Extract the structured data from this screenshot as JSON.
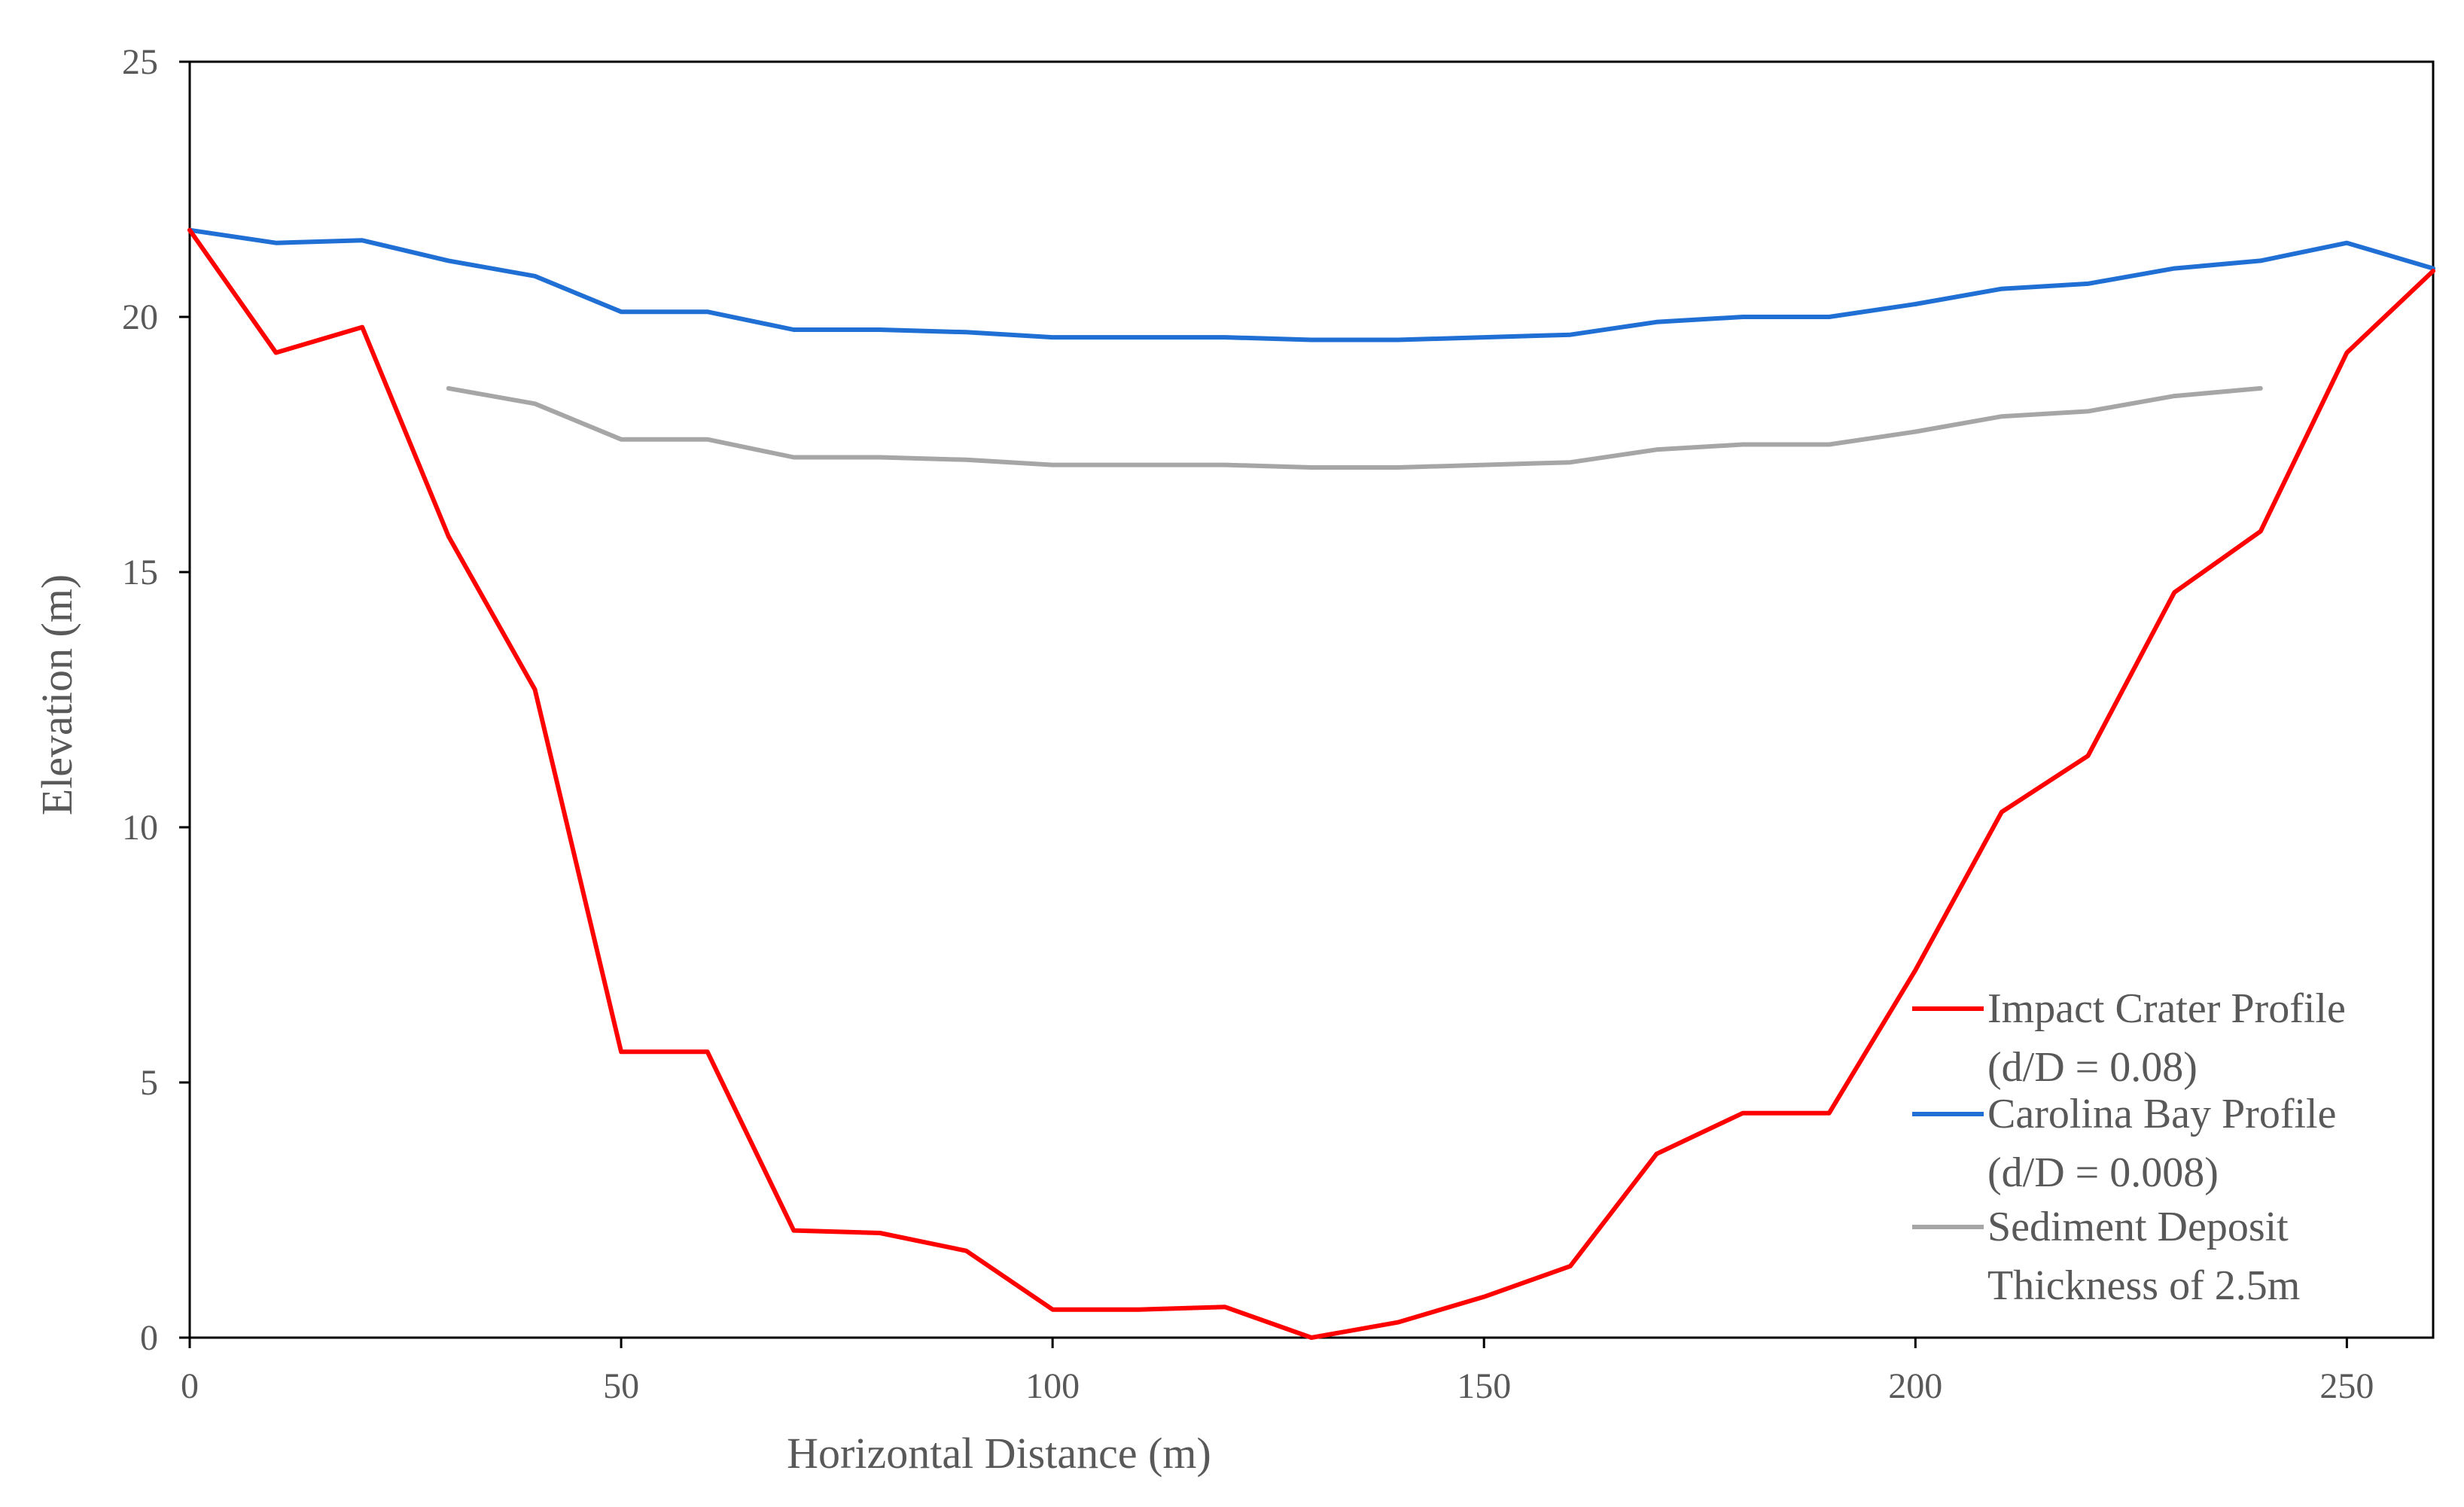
{
  "chart_data": {
    "type": "line",
    "title": "",
    "xlabel": "Horizontal Distance (m)",
    "ylabel": "Elevation (m)",
    "xlim": [
      0,
      260
    ],
    "ylim": [
      0,
      25
    ],
    "xticks": [
      0,
      50,
      100,
      150,
      200,
      250
    ],
    "yticks": [
      0,
      5,
      10,
      15,
      20,
      25
    ],
    "grid": false,
    "legend_position": "bottom-right",
    "series": [
      {
        "name_lines": [
          "Impact Crater Profile",
          "(d/D = 0.08)"
        ],
        "color": "#ff0000",
        "x": [
          0,
          10,
          20,
          30,
          40,
          50,
          60,
          70,
          80,
          90,
          100,
          110,
          120,
          130,
          140,
          150,
          160,
          170,
          180,
          190,
          200,
          210,
          220,
          230,
          240,
          250,
          260
        ],
        "y": [
          21.7,
          19.3,
          19.8,
          15.7,
          12.7,
          5.6,
          5.6,
          2.1,
          2.05,
          1.7,
          0.55,
          0.55,
          0.6,
          0.0,
          0.3,
          0.8,
          1.4,
          3.6,
          4.4,
          4.4,
          7.2,
          10.3,
          11.4,
          14.6,
          15.8,
          19.3,
          20.9
        ]
      },
      {
        "name_lines": [
          "Carolina Bay Profile",
          "(d/D = 0.008)"
        ],
        "color": "#1f6fd4",
        "x": [
          0,
          10,
          20,
          30,
          40,
          50,
          60,
          70,
          80,
          90,
          100,
          110,
          120,
          130,
          140,
          150,
          160,
          170,
          180,
          190,
          200,
          210,
          220,
          230,
          240,
          250,
          260
        ],
        "y": [
          21.7,
          21.45,
          21.5,
          21.1,
          20.8,
          20.1,
          20.1,
          19.75,
          19.75,
          19.7,
          19.6,
          19.6,
          19.6,
          19.55,
          19.55,
          19.6,
          19.65,
          19.9,
          20.0,
          20.0,
          20.25,
          20.55,
          20.65,
          20.95,
          21.1,
          21.45,
          20.95
        ]
      },
      {
        "name_lines": [
          "Sediment Deposit",
          "Thickness of 2.5m"
        ],
        "color": "#a6a6a6",
        "x": [
          30,
          40,
          50,
          60,
          70,
          80,
          90,
          100,
          110,
          120,
          130,
          140,
          150,
          160,
          170,
          180,
          190,
          200,
          210,
          220,
          230,
          240
        ],
        "y": [
          18.6,
          18.3,
          17.6,
          17.6,
          17.25,
          17.25,
          17.2,
          17.1,
          17.1,
          17.1,
          17.05,
          17.05,
          17.1,
          17.15,
          17.4,
          17.5,
          17.5,
          17.75,
          18.05,
          18.15,
          18.45,
          18.6
        ]
      }
    ]
  }
}
